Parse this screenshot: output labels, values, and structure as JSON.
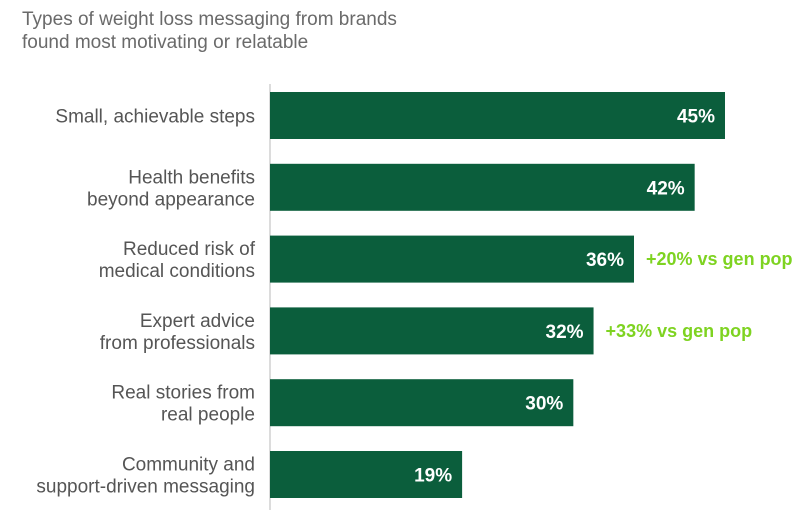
{
  "chart_data": {
    "type": "bar",
    "orientation": "horizontal",
    "title_lines": [
      "Types of weight loss messaging from brands",
      "found most motivating or relatable"
    ],
    "categories": [
      [
        "Small, achievable steps"
      ],
      [
        "Health benefits",
        "beyond appearance"
      ],
      [
        "Reduced risk of",
        "medical conditions"
      ],
      [
        "Expert advice",
        "from professionals"
      ],
      [
        "Real stories from",
        "real people"
      ],
      [
        "Community and",
        "support-driven messaging"
      ]
    ],
    "values": [
      45,
      42,
      36,
      32,
      30,
      19
    ],
    "value_labels": [
      "45%",
      "42%",
      "36%",
      "32%",
      "30%",
      "19%"
    ],
    "annotations": [
      "",
      "",
      "+20% vs gen pop",
      "+33% vs gen pop",
      "",
      ""
    ],
    "xlim": [
      0,
      45
    ],
    "grid": false,
    "legend": "none",
    "colors": {
      "bar": "#0b5e3c",
      "annotation": "#7ed321",
      "axis": "#d0d0d0",
      "value_text": "#ffffff",
      "category_text": "#555555"
    }
  }
}
